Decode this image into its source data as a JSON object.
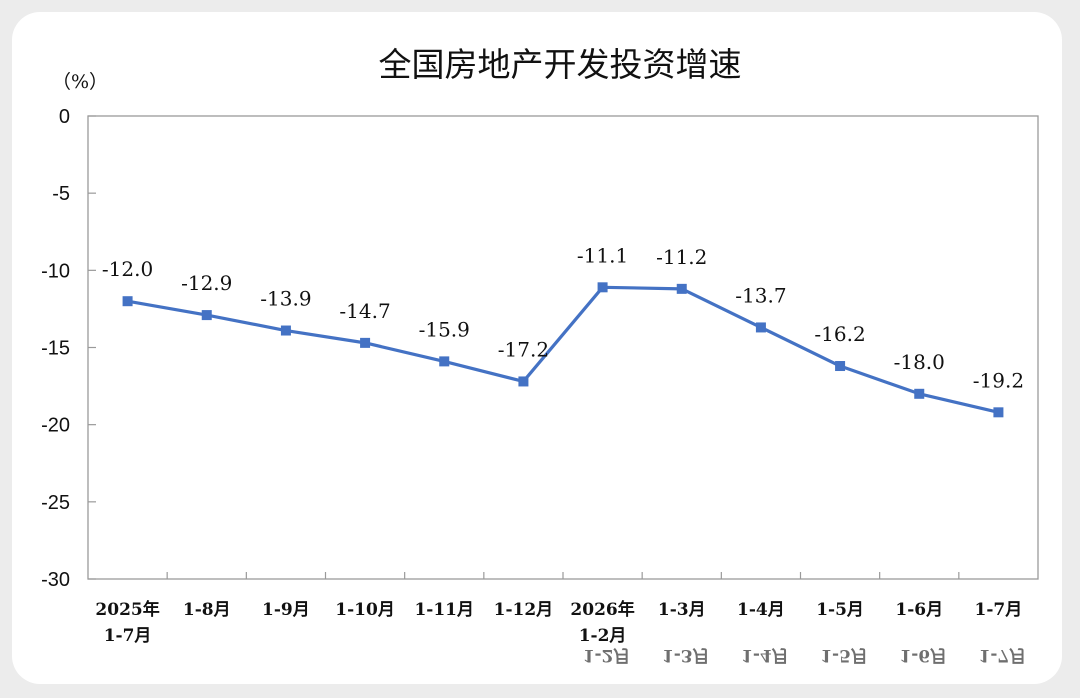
{
  "chart_data": {
    "type": "line",
    "title": "全国房地产开发投资增速",
    "ylabel": "（%）",
    "ylim": [
      -30,
      0
    ],
    "yticks": [
      0,
      -5,
      -10,
      -15,
      -20,
      -25,
      -30
    ],
    "categories": [
      [
        "2025年",
        "1-7月"
      ],
      [
        "1-8月"
      ],
      [
        "1-9月"
      ],
      [
        "1-10月"
      ],
      [
        "1-11月"
      ],
      [
        "1-12月"
      ],
      [
        "2026年",
        "1-2月"
      ],
      [
        "1-3月"
      ],
      [
        "1-4月"
      ],
      [
        "1-5月"
      ],
      [
        "1-6月"
      ],
      [
        "1-7月"
      ]
    ],
    "values": [
      -12.0,
      -12.9,
      -13.9,
      -14.7,
      -15.9,
      -17.2,
      -11.1,
      -11.2,
      -13.7,
      -16.2,
      -18.0,
      -19.2
    ],
    "data_labels": [
      "-12.0",
      "-12.9",
      "-13.9",
      "-14.7",
      "-15.9",
      "-17.2",
      "-11.1",
      "-11.2",
      "-13.7",
      "-16.2",
      "-18.0",
      "-19.2"
    ],
    "series_color": "#4472c4",
    "grid": false,
    "legend": "none"
  }
}
